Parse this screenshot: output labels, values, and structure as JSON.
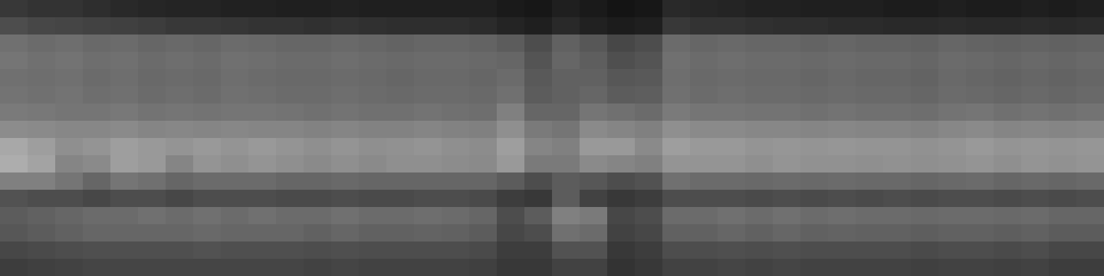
{
  "chart_data": {
    "type": "heatmap",
    "tick_labels": false,
    "xlim": [
      0,
      40
    ],
    "ylim": [
      0,
      16
    ],
    "zlim": [
      0,
      100
    ],
    "cells": [
      [
        22,
        20,
        20,
        18,
        16,
        15,
        14,
        14,
        13,
        13,
        12,
        12,
        13,
        12,
        12,
        12,
        12,
        12,
        10,
        9,
        12,
        10,
        8,
        9,
        16,
        15,
        14,
        13,
        13,
        12,
        12,
        12,
        11,
        11,
        12,
        11,
        11,
        12,
        11,
        12
      ],
      [
        30,
        28,
        27,
        26,
        25,
        24,
        22,
        22,
        21,
        20,
        20,
        19,
        20,
        19,
        18,
        18,
        18,
        17,
        14,
        12,
        16,
        13,
        11,
        12,
        22,
        20,
        20,
        19,
        18,
        18,
        17,
        17,
        16,
        16,
        17,
        16,
        16,
        17,
        16,
        17
      ],
      [
        44,
        42,
        43,
        41,
        42,
        40,
        41,
        40,
        42,
        41,
        40,
        40,
        41,
        40,
        39,
        40,
        40,
        39,
        36,
        30,
        38,
        34,
        28,
        30,
        42,
        40,
        41,
        40,
        40,
        39,
        40,
        39,
        39,
        38,
        40,
        39,
        38,
        39,
        38,
        39
      ],
      [
        46,
        44,
        45,
        43,
        44,
        42,
        43,
        42,
        44,
        43,
        42,
        42,
        43,
        42,
        41,
        42,
        42,
        41,
        40,
        33,
        40,
        37,
        31,
        33,
        44,
        42,
        43,
        42,
        42,
        41,
        42,
        41,
        41,
        40,
        42,
        41,
        40,
        41,
        40,
        41
      ],
      [
        44,
        43,
        44,
        42,
        43,
        41,
        42,
        41,
        43,
        42,
        41,
        41,
        42,
        41,
        40,
        41,
        41,
        40,
        42,
        35,
        38,
        38,
        34,
        35,
        43,
        41,
        42,
        41,
        41,
        40,
        41,
        40,
        40,
        39,
        41,
        40,
        39,
        40,
        39,
        40
      ],
      [
        45,
        44,
        45,
        43,
        44,
        42,
        43,
        42,
        44,
        43,
        42,
        42,
        43,
        42,
        41,
        42,
        42,
        41,
        44,
        36,
        38,
        40,
        36,
        37,
        44,
        42,
        43,
        42,
        42,
        41,
        42,
        41,
        41,
        40,
        42,
        41,
        40,
        41,
        40,
        41
      ],
      [
        48,
        47,
        46,
        46,
        47,
        45,
        46,
        45,
        46,
        46,
        45,
        44,
        45,
        44,
        44,
        45,
        44,
        43,
        50,
        40,
        40,
        46,
        44,
        42,
        48,
        46,
        46,
        45,
        45,
        44,
        45,
        44,
        44,
        43,
        45,
        46,
        44,
        45,
        44,
        45
      ],
      [
        55,
        54,
        53,
        53,
        54,
        52,
        53,
        52,
        53,
        52,
        52,
        51,
        52,
        51,
        51,
        52,
        51,
        50,
        56,
        48,
        46,
        54,
        52,
        50,
        56,
        54,
        54,
        53,
        53,
        52,
        53,
        52,
        52,
        51,
        53,
        54,
        52,
        53,
        52,
        53
      ],
      [
        66,
        62,
        56,
        58,
        62,
        60,
        58,
        60,
        58,
        60,
        58,
        56,
        58,
        56,
        57,
        58,
        56,
        55,
        62,
        52,
        50,
        60,
        60,
        54,
        62,
        60,
        60,
        58,
        59,
        58,
        59,
        58,
        58,
        57,
        58,
        60,
        58,
        59,
        58,
        59
      ],
      [
        68,
        64,
        52,
        54,
        62,
        60,
        52,
        58,
        56,
        58,
        56,
        54,
        56,
        54,
        56,
        56,
        55,
        54,
        60,
        48,
        48,
        54,
        52,
        50,
        58,
        58,
        58,
        56,
        58,
        57,
        57,
        56,
        57,
        56,
        57,
        58,
        56,
        58,
        57,
        58
      ],
      [
        50,
        50,
        46,
        40,
        46,
        44,
        40,
        42,
        42,
        42,
        40,
        40,
        41,
        40,
        40,
        40,
        40,
        40,
        36,
        30,
        36,
        34,
        30,
        32,
        44,
        42,
        42,
        41,
        42,
        41,
        42,
        41,
        41,
        40,
        41,
        42,
        40,
        41,
        40,
        41
      ],
      [
        32,
        30,
        30,
        28,
        30,
        30,
        28,
        30,
        30,
        30,
        29,
        29,
        30,
        29,
        29,
        30,
        30,
        29,
        24,
        22,
        36,
        26,
        22,
        24,
        30,
        30,
        30,
        29,
        30,
        29,
        30,
        29,
        30,
        29,
        30,
        30,
        29,
        30,
        29,
        30
      ],
      [
        36,
        38,
        40,
        42,
        42,
        44,
        42,
        44,
        42,
        44,
        42,
        42,
        44,
        42,
        42,
        43,
        42,
        40,
        30,
        36,
        50,
        48,
        28,
        30,
        42,
        42,
        44,
        42,
        44,
        42,
        43,
        42,
        42,
        41,
        42,
        42,
        41,
        42,
        40,
        40
      ],
      [
        34,
        36,
        38,
        40,
        40,
        40,
        40,
        41,
        40,
        40,
        40,
        38,
        40,
        38,
        38,
        39,
        38,
        36,
        28,
        30,
        44,
        42,
        26,
        28,
        38,
        38,
        40,
        38,
        40,
        38,
        39,
        38,
        38,
        37,
        38,
        38,
        37,
        38,
        36,
        36
      ],
      [
        28,
        29,
        30,
        31,
        31,
        31,
        31,
        32,
        31,
        31,
        31,
        30,
        31,
        30,
        30,
        30,
        30,
        29,
        24,
        24,
        32,
        32,
        22,
        24,
        30,
        30,
        31,
        30,
        31,
        30,
        30,
        30,
        30,
        29,
        30,
        30,
        29,
        30,
        28,
        28
      ],
      [
        24,
        25,
        26,
        27,
        27,
        27,
        27,
        27,
        27,
        27,
        27,
        26,
        27,
        26,
        26,
        26,
        26,
        25,
        22,
        22,
        26,
        26,
        20,
        22,
        26,
        26,
        27,
        26,
        27,
        26,
        26,
        26,
        26,
        25,
        26,
        26,
        25,
        26,
        24,
        24
      ]
    ]
  }
}
